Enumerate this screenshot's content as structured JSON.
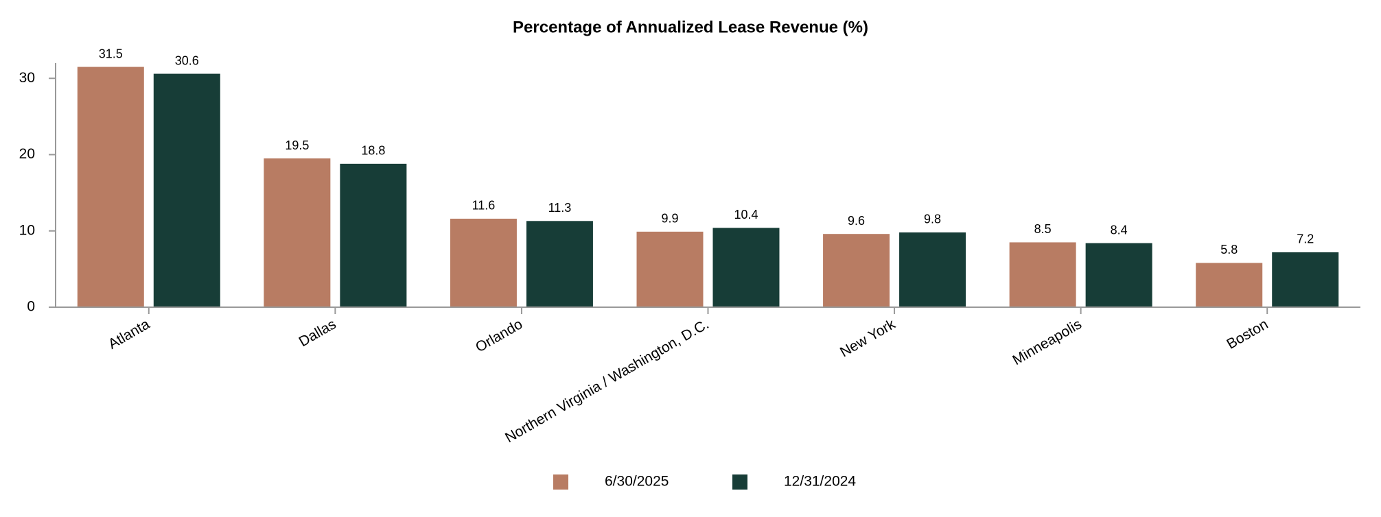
{
  "chart_data": {
    "type": "bar",
    "title": "Percentage of Annualized Lease Revenue (%)",
    "categories": [
      "Atlanta",
      "Dallas",
      "Orlando",
      "Northern Virginia / Washington, D.C.",
      "New York",
      "Minneapolis",
      "Boston"
    ],
    "series": [
      {
        "name": "6/30/2025",
        "color": "#b87c63",
        "values": [
          31.5,
          19.5,
          11.6,
          9.9,
          9.6,
          8.5,
          5.8
        ]
      },
      {
        "name": "12/31/2024",
        "color": "#173d37",
        "values": [
          30.6,
          18.8,
          11.3,
          10.4,
          9.8,
          8.4,
          7.2
        ]
      }
    ],
    "ylim": [
      0,
      32
    ],
    "yticks": [
      0,
      10,
      20,
      30
    ],
    "grid": false,
    "legend": "bottom"
  }
}
